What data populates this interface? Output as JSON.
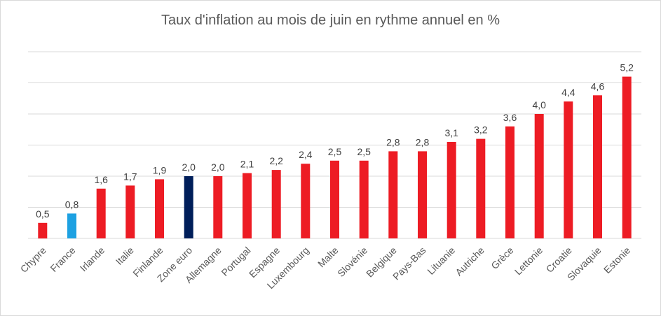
{
  "chart_data": {
    "type": "bar",
    "title": "Taux d'inflation au mois de juin en rythme annuel en %",
    "categories": [
      "Chypre",
      "France",
      "Irlande",
      "Italie",
      "Finlande",
      "Zone euro",
      "Allemagne",
      "Portugal",
      "Espagne",
      "Luxembourg",
      "Malte",
      "Slovénie",
      "Belgique",
      "Pays-Bas",
      "Lituanie",
      "Autriche",
      "Grèce",
      "Lettonie",
      "Croatie",
      "Slovaquie",
      "Estonie"
    ],
    "values": [
      0.5,
      0.8,
      1.6,
      1.7,
      1.9,
      2.0,
      2.0,
      2.1,
      2.2,
      2.4,
      2.5,
      2.5,
      2.8,
      2.8,
      3.1,
      3.2,
      3.6,
      4.0,
      4.4,
      4.6,
      5.2
    ],
    "data_labels": [
      "0,5",
      "0,8",
      "1,6",
      "1,7",
      "1,9",
      "2,0",
      "2,0",
      "2,1",
      "2,2",
      "2,4",
      "2,5",
      "2,5",
      "2,8",
      "2,8",
      "3,1",
      "3,2",
      "3,6",
      "4,0",
      "4,4",
      "4,6",
      "5,2"
    ],
    "bar_colors": [
      "#ED1C24",
      "#1DA1E2",
      "#ED1C24",
      "#ED1C24",
      "#ED1C24",
      "#001E5A",
      "#ED1C24",
      "#ED1C24",
      "#ED1C24",
      "#ED1C24",
      "#ED1C24",
      "#ED1C24",
      "#ED1C24",
      "#ED1C24",
      "#ED1C24",
      "#ED1C24",
      "#ED1C24",
      "#ED1C24",
      "#ED1C24",
      "#ED1C24",
      "#ED1C24"
    ],
    "ylim": [
      0,
      6
    ],
    "y_axis_labels_visible": false,
    "grid": true,
    "legend": "none"
  }
}
